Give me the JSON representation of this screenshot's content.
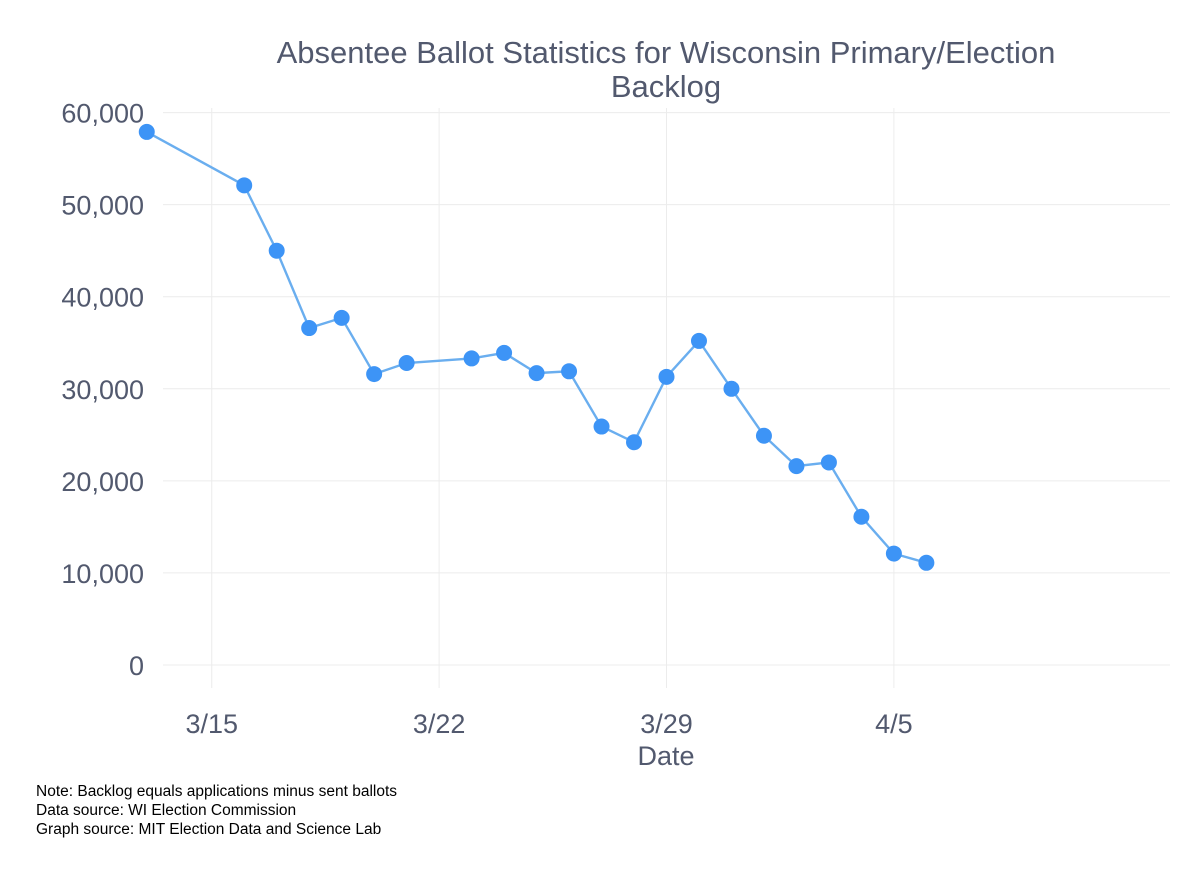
{
  "chart_data": {
    "type": "line",
    "title": [
      "Absentee Ballot Statistics for Wisconsin Primary/Election",
      "Backlog"
    ],
    "xlabel": "Date",
    "ylabel": "",
    "x_day_range": [
      -1.5,
      29.5
    ],
    "ylim": [
      -2500,
      60500
    ],
    "x_ticks": [
      {
        "day": 0,
        "label": "3/15"
      },
      {
        "day": 7,
        "label": "3/22"
      },
      {
        "day": 14,
        "label": "3/29"
      },
      {
        "day": 21,
        "label": "4/5"
      }
    ],
    "y_ticks": [
      {
        "value": 0,
        "label": "0"
      },
      {
        "value": 10000,
        "label": "10,000"
      },
      {
        "value": 20000,
        "label": "20,000"
      },
      {
        "value": 30000,
        "label": "30,000"
      },
      {
        "value": 40000,
        "label": "40,000"
      },
      {
        "value": 50000,
        "label": "50,000"
      },
      {
        "value": 60000,
        "label": "60,000"
      }
    ],
    "grid": true,
    "series": [
      {
        "name": "Backlog",
        "color": "#3d94f6",
        "line_color": "#6aaeef",
        "points": [
          {
            "date": "3/13",
            "day": -2,
            "value": 57900
          },
          {
            "date": "3/16",
            "day": 1,
            "value": 52100
          },
          {
            "date": "3/17",
            "day": 2,
            "value": 45000
          },
          {
            "date": "3/18",
            "day": 3,
            "value": 36600
          },
          {
            "date": "3/19",
            "day": 4,
            "value": 37700
          },
          {
            "date": "3/20",
            "day": 5,
            "value": 31600
          },
          {
            "date": "3/21",
            "day": 6,
            "value": 32800
          },
          {
            "date": "3/23",
            "day": 8,
            "value": 33300
          },
          {
            "date": "3/24",
            "day": 9,
            "value": 33900
          },
          {
            "date": "3/25",
            "day": 10,
            "value": 31700
          },
          {
            "date": "3/26",
            "day": 11,
            "value": 31900
          },
          {
            "date": "3/27",
            "day": 12,
            "value": 25900
          },
          {
            "date": "3/28",
            "day": 13,
            "value": 24200
          },
          {
            "date": "3/29",
            "day": 14,
            "value": 31300
          },
          {
            "date": "3/30",
            "day": 15,
            "value": 35200
          },
          {
            "date": "3/31",
            "day": 16,
            "value": 30000
          },
          {
            "date": "4/1",
            "day": 17,
            "value": 24900
          },
          {
            "date": "4/2",
            "day": 18,
            "value": 21600
          },
          {
            "date": "4/3",
            "day": 19,
            "value": 22000
          },
          {
            "date": "4/4",
            "day": 20,
            "value": 16100
          },
          {
            "date": "4/5",
            "day": 21,
            "value": 12100
          },
          {
            "date": "4/6",
            "day": 22,
            "value": 11100
          }
        ]
      }
    ]
  },
  "notes": [
    "Note:  Backlog equals applications minus sent ballots",
    "Data source:  WI Election Commission",
    "Graph source:  MIT Election Data and Science Lab"
  ]
}
